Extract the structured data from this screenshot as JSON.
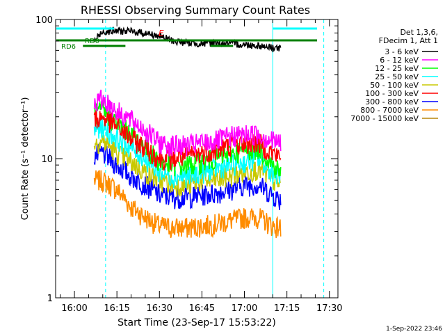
{
  "chart_data": {
    "type": "line",
    "title": "RHESSI Observing Summary Count Rates",
    "xlabel": "Start Time (23-Sep-17 15:53:22)",
    "ylabel": "Count Rate (s⁻¹ detector⁻¹)",
    "yscale": "log",
    "ylim": [
      1,
      100
    ],
    "y_ticks": [
      {
        "value": 1,
        "label": "1"
      },
      {
        "value": 10,
        "label": "10"
      },
      {
        "value": 100,
        "label": "100"
      }
    ],
    "xlim": [
      "15:53:22",
      "17:33:00"
    ],
    "x_ticks": [
      {
        "value": "16:00",
        "label": "16:00"
      },
      {
        "value": "16:15",
        "label": "16:15"
      },
      {
        "value": "16:30",
        "label": "16:30"
      },
      {
        "value": "16:45",
        "label": "16:45"
      },
      {
        "value": "17:00",
        "label": "17:00"
      },
      {
        "value": "17:15",
        "label": "17:15"
      },
      {
        "value": "17:30",
        "label": "17:30"
      }
    ],
    "legend_header": [
      "Det 1,3,6,",
      "FDecim 1, Att 1"
    ],
    "legend_position": "right",
    "series": [
      {
        "name": "3 - 6 keV",
        "color": "#000000",
        "x": [
          "16:07",
          "16:10",
          "16:15",
          "16:20",
          "16:25",
          "16:30",
          "16:35",
          "16:40",
          "16:45",
          "16:50",
          "16:55",
          "17:00",
          "17:05",
          "17:10",
          "17:13"
        ],
        "values": [
          70,
          82,
          83,
          82,
          80,
          76,
          70,
          68,
          67,
          68,
          67,
          66,
          65,
          63,
          62
        ]
      },
      {
        "name": "6 - 12 keV",
        "color": "#ff00ff",
        "x": [
          "16:07",
          "16:10",
          "16:15",
          "16:20",
          "16:25",
          "16:30",
          "16:35",
          "16:40",
          "16:45",
          "16:50",
          "16:55",
          "17:00",
          "17:05",
          "17:10",
          "17:13"
        ],
        "values": [
          25,
          27,
          22,
          19,
          16,
          13,
          12.5,
          12.5,
          13,
          13.5,
          14.5,
          15,
          15,
          13.5,
          13
        ]
      },
      {
        "name": "12 - 25 keV",
        "color": "#00ff00",
        "x": [
          "16:07",
          "16:10",
          "16:15",
          "16:20",
          "16:25",
          "16:30",
          "16:35",
          "16:40",
          "16:45",
          "16:50",
          "16:55",
          "17:00",
          "17:05",
          "17:10",
          "17:13"
        ],
        "values": [
          21,
          22,
          18,
          15,
          12,
          9.5,
          9,
          9,
          9.5,
          10,
          11,
          11.5,
          12,
          9,
          8
        ]
      },
      {
        "name": "25 - 50 keV",
        "color": "#00ffff",
        "x": [
          "16:07",
          "16:10",
          "16:15",
          "16:20",
          "16:25",
          "16:30",
          "16:35",
          "16:40",
          "16:45",
          "16:50",
          "16:55",
          "17:00",
          "17:05",
          "17:10",
          "17:13"
        ],
        "values": [
          16,
          17,
          14,
          12,
          10,
          8,
          7.5,
          7.5,
          8,
          8.5,
          9,
          9.5,
          10,
          8,
          7.5
        ]
      },
      {
        "name": "50 - 100 keV",
        "color": "#c8c800",
        "x": [
          "16:07",
          "16:10",
          "16:15",
          "16:20",
          "16:25",
          "16:30",
          "16:35",
          "16:40",
          "16:45",
          "16:50",
          "16:55",
          "17:00",
          "17:05",
          "17:10",
          "17:13"
        ],
        "values": [
          13,
          13.5,
          11,
          9.5,
          8,
          7,
          6.5,
          6.5,
          7,
          7,
          7.5,
          8,
          8.5,
          7,
          6.5
        ]
      },
      {
        "name": "100 - 300 keV",
        "color": "#ff0000",
        "x": [
          "16:07",
          "16:10",
          "16:15",
          "16:20",
          "16:25",
          "16:30",
          "16:35",
          "16:40",
          "16:45",
          "16:50",
          "16:55",
          "17:00",
          "17:05",
          "17:10",
          "17:13"
        ],
        "values": [
          19,
          20,
          17,
          14,
          12,
          10,
          10,
          10.5,
          11,
          11.5,
          12.5,
          13,
          13,
          11,
          10
        ]
      },
      {
        "name": "300 - 800 keV",
        "color": "#0000ff",
        "x": [
          "16:07",
          "16:10",
          "16:15",
          "16:20",
          "16:25",
          "16:30",
          "16:35",
          "16:40",
          "16:45",
          "16:50",
          "16:55",
          "17:00",
          "17:05",
          "17:10",
          "17:13"
        ],
        "values": [
          10.5,
          11,
          9,
          7.5,
          6.5,
          5.5,
          5.3,
          5.3,
          5.5,
          5.7,
          6,
          6.5,
          6.5,
          5.5,
          5
        ]
      },
      {
        "name": "800 - 7000 keV",
        "color": "#ff8c00",
        "x": [
          "16:07",
          "16:10",
          "16:15",
          "16:20",
          "16:25",
          "16:30",
          "16:35",
          "16:40",
          "16:45",
          "16:50",
          "16:55",
          "17:00",
          "17:05",
          "17:10",
          "17:13"
        ],
        "values": [
          7,
          7,
          6,
          4.5,
          3.8,
          3.3,
          3.2,
          3.2,
          3.3,
          3.4,
          3.6,
          3.8,
          3.8,
          3.3,
          3.2
        ]
      },
      {
        "name": "7000 - 15000 keV",
        "color": "#b8860b",
        "x": [],
        "values": []
      }
    ],
    "annotations": [
      {
        "text": "RD0",
        "color": "#008000"
      },
      {
        "text": "RD6",
        "color": "#008000"
      },
      {
        "text": "E",
        "color": "#ff0000"
      }
    ],
    "vertical_markers": [
      {
        "x": "15:53:22",
        "style": "solid",
        "color": "#00ffff"
      },
      {
        "x": "16:11",
        "style": "dashed",
        "color": "#00ffff"
      },
      {
        "x": "17:10",
        "style": "solid",
        "color": "#00ffff"
      },
      {
        "x": "17:28",
        "style": "dashed",
        "color": "#00ffff"
      }
    ],
    "grid": false
  },
  "footer": {
    "timestamp": "1-Sep-2022 23:46"
  },
  "colors": {
    "background": "#ffffff",
    "axis": "#000000",
    "marker": "#00ffff",
    "status_bar": "#008000"
  }
}
